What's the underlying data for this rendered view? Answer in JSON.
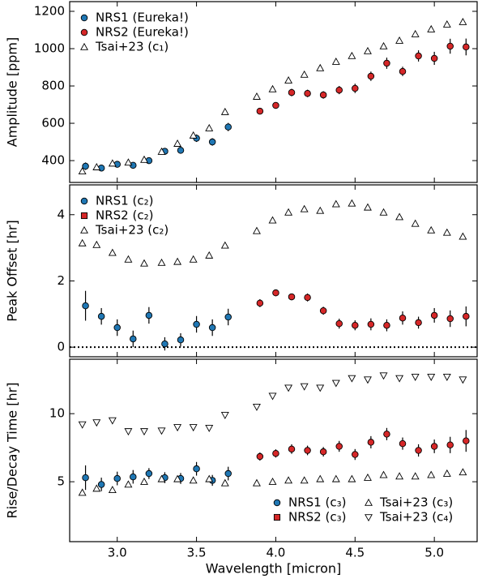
{
  "chart_data": [
    {
      "type": "scatter",
      "ylabel": "Amplitude [ppm]",
      "xlim": [
        2.7,
        5.27
      ],
      "ylim": [
        283,
        1252
      ],
      "xticks": [
        3,
        3.5,
        4,
        4.5,
        5
      ],
      "yticks": [
        400,
        600,
        800,
        1000,
        1200
      ],
      "legend": "upper left",
      "series": [
        {
          "name": "NRS1 (Eureka!)",
          "color": "#1f77b4",
          "marker": "circle",
          "x": [
            2.8,
            2.9,
            3.0,
            3.1,
            3.2,
            3.3,
            3.4,
            3.5,
            3.6,
            3.7
          ],
          "values": [
            370,
            360,
            380,
            375,
            400,
            450,
            455,
            520,
            500,
            580
          ],
          "errors": [
            20,
            18,
            15,
            15,
            15,
            18,
            18,
            20,
            20,
            22
          ]
        },
        {
          "name": "NRS2 (Eureka!)",
          "color": "#d62728",
          "marker": "circle",
          "x": [
            3.9,
            4.0,
            4.1,
            4.2,
            4.3,
            4.4,
            4.5,
            4.6,
            4.7,
            4.8,
            4.9,
            5.0,
            5.1,
            5.2
          ],
          "values": [
            665,
            696,
            765,
            760,
            752,
            778,
            787,
            852,
            922,
            878,
            961,
            948,
            1013,
            1009
          ],
          "errors": [
            15,
            15,
            20,
            20,
            20,
            22,
            25,
            25,
            30,
            25,
            30,
            35,
            40,
            45
          ]
        },
        {
          "name": "Tsai+23 (c₁)",
          "color": "#ffffff",
          "marker": "triangle-up",
          "x": [
            2.78,
            2.87,
            2.97,
            3.07,
            3.17,
            3.28,
            3.38,
            3.48,
            3.58,
            3.68,
            3.88,
            3.98,
            4.08,
            4.18,
            4.28,
            4.38,
            4.48,
            4.58,
            4.68,
            4.78,
            4.88,
            4.98,
            5.08,
            5.18
          ],
          "values": [
            343,
            365,
            385,
            390,
            405,
            448,
            491,
            535,
            574,
            661,
            743,
            783,
            830,
            861,
            896,
            930,
            961,
            987,
            1013,
            1043,
            1078,
            1104,
            1130,
            1143
          ]
        }
      ]
    },
    {
      "type": "scatter",
      "ylabel": "Peak Offset [hr]",
      "xlim": [
        2.7,
        5.27
      ],
      "ylim": [
        -0.29,
        4.9
      ],
      "xticks": [
        3,
        3.5,
        4,
        4.5,
        5
      ],
      "yticks": [
        0,
        2,
        4
      ],
      "legend": "upper left",
      "hline": 0,
      "series": [
        {
          "name": "NRS1 (c₂)",
          "color": "#1f77b4",
          "marker": "circle",
          "x": [
            2.8,
            2.9,
            3.0,
            3.1,
            3.2,
            3.3,
            3.4,
            3.5,
            3.6,
            3.7
          ],
          "values": [
            1.25,
            0.93,
            0.59,
            0.25,
            0.96,
            0.1,
            0.22,
            0.69,
            0.59,
            0.91
          ],
          "errors": [
            0.45,
            0.25,
            0.25,
            0.25,
            0.25,
            0.2,
            0.2,
            0.25,
            0.25,
            0.25
          ]
        },
        {
          "name": "NRS2 (c₂)",
          "color": "#d62728",
          "marker": "circle",
          "legend_marker": "square",
          "x": [
            3.9,
            4.0,
            4.1,
            4.2,
            4.3,
            4.4,
            4.5,
            4.6,
            4.7,
            4.8,
            4.9,
            5.0,
            5.1,
            5.2
          ],
          "values": [
            1.33,
            1.64,
            1.52,
            1.5,
            1.1,
            0.71,
            0.66,
            0.69,
            0.66,
            0.88,
            0.74,
            0.96,
            0.86,
            0.93
          ],
          "errors": [
            0.12,
            0.1,
            0.1,
            0.12,
            0.12,
            0.15,
            0.15,
            0.18,
            0.18,
            0.2,
            0.18,
            0.22,
            0.25,
            0.3
          ]
        },
        {
          "name": "Tsai+23 (c₂)",
          "color": "#ffffff",
          "marker": "triangle-up",
          "x": [
            2.78,
            2.87,
            2.97,
            3.07,
            3.17,
            3.28,
            3.38,
            3.48,
            3.58,
            3.68,
            3.88,
            3.98,
            4.08,
            4.18,
            4.28,
            4.38,
            4.48,
            4.58,
            4.68,
            4.78,
            4.88,
            4.98,
            5.08,
            5.18
          ],
          "values": [
            3.14,
            3.09,
            2.85,
            2.65,
            2.53,
            2.55,
            2.58,
            2.65,
            2.77,
            3.07,
            3.51,
            3.83,
            4.07,
            4.17,
            4.12,
            4.32,
            4.34,
            4.22,
            4.07,
            3.93,
            3.73,
            3.53,
            3.46,
            3.34
          ]
        }
      ]
    },
    {
      "type": "scatter",
      "ylabel": "Rise/Decay Time [hr]",
      "xlabel": "Wavelength [micron]",
      "xlim": [
        2.7,
        5.27
      ],
      "ylim": [
        0.6,
        14
      ],
      "xticks": [
        {
          "value": 3,
          "label": "3.0"
        },
        {
          "value": 3.5,
          "label": "3.5"
        },
        {
          "value": 4,
          "label": "4.0"
        },
        {
          "value": 4.5,
          "label": "4.5"
        },
        {
          "value": 5,
          "label": "5.0"
        }
      ],
      "yticks": [
        5,
        10
      ],
      "legend": "lower right",
      "legend_ncol": 2,
      "series": [
        {
          "name": "NRS1 (c₃)",
          "color": "#1f77b4",
          "marker": "circle",
          "x": [
            2.8,
            2.9,
            3.0,
            3.1,
            3.2,
            3.3,
            3.4,
            3.5,
            3.6,
            3.7
          ],
          "values": [
            5.3,
            4.8,
            5.24,
            5.36,
            5.6,
            5.3,
            5.24,
            5.95,
            5.1,
            5.6
          ],
          "errors": [
            0.9,
            0.5,
            0.5,
            0.5,
            0.4,
            0.4,
            0.4,
            0.5,
            0.4,
            0.5
          ]
        },
        {
          "name": "NRS2 (c₃)",
          "color": "#d62728",
          "marker": "circle",
          "legend_marker": "square",
          "x": [
            3.9,
            4.0,
            4.1,
            4.2,
            4.3,
            4.4,
            4.5,
            4.6,
            4.7,
            4.8,
            4.9,
            5.0,
            5.1,
            5.2
          ],
          "values": [
            6.85,
            7.08,
            7.4,
            7.3,
            7.2,
            7.6,
            7.0,
            7.9,
            8.5,
            7.8,
            7.3,
            7.6,
            7.7,
            8.0
          ],
          "errors": [
            0.3,
            0.3,
            0.35,
            0.35,
            0.35,
            0.4,
            0.4,
            0.45,
            0.45,
            0.45,
            0.45,
            0.5,
            0.6,
            0.8
          ]
        },
        {
          "name": "Tsai+23 (c₃)",
          "color": "#ffffff",
          "marker": "triangle-up",
          "x": [
            2.78,
            2.87,
            2.97,
            3.07,
            3.17,
            3.28,
            3.38,
            3.48,
            3.58,
            3.68,
            3.88,
            3.98,
            4.08,
            4.18,
            4.28,
            4.38,
            4.48,
            4.58,
            4.68,
            4.78,
            4.88,
            4.98,
            5.08,
            5.18
          ],
          "values": [
            4.2,
            4.5,
            4.4,
            4.8,
            5.0,
            5.2,
            5.2,
            5.1,
            5.2,
            4.9,
            4.9,
            5.0,
            5.1,
            5.1,
            5.2,
            5.2,
            5.2,
            5.3,
            5.5,
            5.4,
            5.4,
            5.5,
            5.6,
            5.7
          ]
        },
        {
          "name": "Tsai+23 (c₄)",
          "color": "#ffffff",
          "marker": "triangle-down",
          "x": [
            2.78,
            2.87,
            2.97,
            3.07,
            3.17,
            3.28,
            3.38,
            3.48,
            3.58,
            3.68,
            3.88,
            3.98,
            4.08,
            4.18,
            4.28,
            4.38,
            4.48,
            4.58,
            4.68,
            4.78,
            4.88,
            4.98,
            5.08,
            5.18
          ],
          "values": [
            9.2,
            9.35,
            9.5,
            8.7,
            8.7,
            8.75,
            9.0,
            9.0,
            8.95,
            9.9,
            10.5,
            11.3,
            11.9,
            12.0,
            11.9,
            12.25,
            12.6,
            12.5,
            12.8,
            12.6,
            12.7,
            12.7,
            12.7,
            12.5
          ]
        }
      ]
    }
  ]
}
